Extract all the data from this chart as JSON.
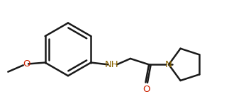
{
  "background_color": "#ffffff",
  "line_color": "#1a1a1a",
  "o_color": "#cc2200",
  "n_color": "#8B6400",
  "line_width": 1.8,
  "figsize": [
    3.47,
    1.5
  ],
  "dpi": 100,
  "xlim": [
    -0.1,
    3.6
  ],
  "ylim": [
    0.0,
    1.45
  ]
}
